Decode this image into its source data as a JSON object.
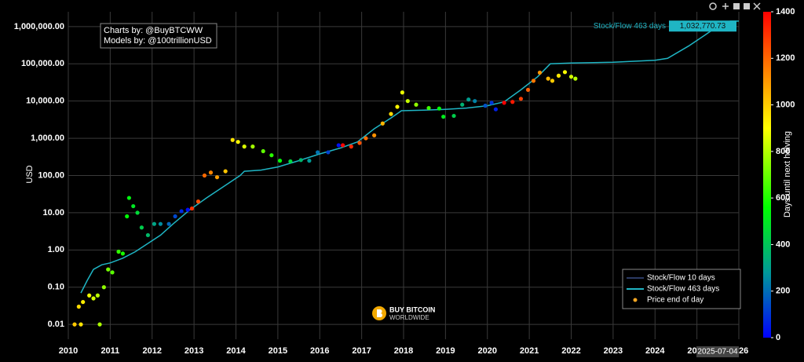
{
  "chart_data": {
    "type": "line",
    "ylabel": "USD",
    "log_y": true,
    "grid": true,
    "legend": "bottom-right",
    "xlim": [
      2010,
      2026
    ],
    "xticks": [
      2010,
      2011,
      2012,
      2013,
      2014,
      2015,
      2016,
      2017,
      2018,
      2019,
      2020,
      2021,
      2022,
      2023,
      2024,
      2025,
      2026
    ],
    "ylim": [
      0.004,
      2500000
    ],
    "yticks": [
      {
        "value": 0.01,
        "label": "0.01"
      },
      {
        "value": 0.1,
        "label": "0.10"
      },
      {
        "value": 1,
        "label": "1.00"
      },
      {
        "value": 10,
        "label": "10.00"
      },
      {
        "value": 100,
        "label": "100.00"
      },
      {
        "value": 1000,
        "label": "1,000.00"
      },
      {
        "value": 10000,
        "label": "10,000.00"
      },
      {
        "value": 100000,
        "label": "100,000.00"
      },
      {
        "value": 1000000,
        "label": "1,000,000.00"
      }
    ],
    "credits": [
      "Charts by: @BuyBTCWW",
      "Models by: @100trillionUSD"
    ],
    "logo": [
      "BUY BITCOIN",
      "WORLDWIDE"
    ],
    "hover": {
      "x": "2025-07-04",
      "value": 1032770.73,
      "value_label": "1,032,770.73"
    },
    "colorbar": {
      "title": "Days until next halving",
      "lim": [
        0,
        1400
      ],
      "ticks": [
        0,
        200,
        400,
        600,
        800,
        1000,
        1200,
        1400
      ],
      "scale": [
        [
          0,
          "#0000ff"
        ],
        [
          280,
          "#009999"
        ],
        [
          560,
          "#00ff00"
        ],
        [
          900,
          "#ffff00"
        ],
        [
          1150,
          "#ff8000"
        ],
        [
          1400,
          "#ff0000"
        ]
      ]
    },
    "series": [
      {
        "name": "Stock/Flow 10 days",
        "type": "line",
        "color": "#2b3a63",
        "x": [],
        "values": []
      },
      {
        "name": "Stock/Flow 463 days",
        "type": "line",
        "color": "#1fb5c4",
        "x": [
          2010.3,
          2010.45,
          2010.6,
          2010.8,
          2011.0,
          2011.3,
          2011.6,
          2011.9,
          2012.2,
          2012.5,
          2012.9,
          2013.3,
          2013.7,
          2014.1,
          2014.2,
          2014.6,
          2015.0,
          2015.5,
          2016.0,
          2016.5,
          2016.9,
          2017.3,
          2017.7,
          2017.95,
          2018.5,
          2019.0,
          2019.5,
          2020.0,
          2020.4,
          2020.8,
          2021.2,
          2021.5,
          2022.0,
          2023.0,
          2024.0,
          2024.3,
          2024.8,
          2025.2,
          2025.5,
          2025.8,
          2026.0
        ],
        "values": [
          0.07,
          0.15,
          0.3,
          0.4,
          0.45,
          0.6,
          0.9,
          1.5,
          2.5,
          5,
          12,
          25,
          50,
          100,
          130,
          140,
          170,
          250,
          380,
          550,
          800,
          1800,
          3500,
          5500,
          5700,
          6000,
          6500,
          7500,
          9500,
          20000,
          45000,
          100000,
          105000,
          110000,
          125000,
          140000,
          300000,
          600000,
          1032770.73,
          1400000,
          1400000
        ]
      },
      {
        "name": "Price end of day",
        "type": "scatter",
        "color": "#f5a623",
        "x": [
          2010.15,
          2010.25,
          2010.3,
          2010.35,
          2010.5,
          2010.6,
          2010.7,
          2010.75,
          2010.85,
          2010.95,
          2011.05,
          2011.2,
          2011.3,
          2011.4,
          2011.45,
          2011.55,
          2011.65,
          2011.75,
          2011.9,
          2012.05,
          2012.2,
          2012.4,
          2012.55,
          2012.7,
          2012.85,
          2012.95,
          2013.1,
          2013.25,
          2013.4,
          2013.55,
          2013.75,
          2013.92,
          2014.05,
          2014.2,
          2014.4,
          2014.65,
          2014.85,
          2015.05,
          2015.3,
          2015.55,
          2015.75,
          2015.95,
          2016.2,
          2016.45,
          2016.55,
          2016.75,
          2016.95,
          2017.1,
          2017.3,
          2017.5,
          2017.7,
          2017.85,
          2017.97,
          2018.1,
          2018.3,
          2018.6,
          2018.85,
          2018.95,
          2019.2,
          2019.4,
          2019.55,
          2019.7,
          2019.95,
          2020.1,
          2020.2,
          2020.4,
          2020.6,
          2020.8,
          2020.97,
          2021.1,
          2021.25,
          2021.45,
          2021.55,
          2021.7,
          2021.85,
          2022.0,
          2022.1
        ],
        "values": [
          0.01,
          0.03,
          0.01,
          0.04,
          0.06,
          0.05,
          0.06,
          0.01,
          0.1,
          0.3,
          0.25,
          0.9,
          0.8,
          8,
          25,
          15,
          10,
          4,
          2.5,
          5,
          5,
          5,
          8,
          11,
          12,
          13,
          20,
          100,
          120,
          90,
          130,
          900,
          800,
          600,
          600,
          450,
          350,
          250,
          240,
          260,
          250,
          420,
          420,
          650,
          650,
          600,
          750,
          1000,
          1200,
          2500,
          4500,
          7000,
          17000,
          10000,
          8000,
          6500,
          6300,
          3800,
          4000,
          8000,
          11000,
          10000,
          7500,
          9000,
          6000,
          9000,
          9500,
          11500,
          20000,
          35000,
          58000,
          40000,
          35000,
          48000,
          60000,
          45000,
          40000
        ],
        "days": [
          1007,
          971,
          953,
          934,
          880,
          843,
          807,
          788,
          752,
          715,
          679,
          624,
          588,
          551,
          533,
          496,
          460,
          423,
          369,
          314,
          259,
          186,
          131,
          77,
          22,
          1307,
          1252,
          1197,
          1142,
          1088,
          1015,
          953,
          905,
          850,
          777,
          686,
          613,
          540,
          449,
          358,
          285,
          212,
          120,
          29,
          1391,
          1318,
          1241,
          1190,
          1117,
          1044,
          971,
          916,
          872,
          825,
          752,
          639,
          548,
          511,
          423,
          350,
          296,
          241,
          150,
          95,
          58,
          1424,
          1351,
          1278,
          1215,
          1168,
          1113,
          1040,
          1004,
          949,
          894,
          840,
          803
        ]
      }
    ]
  }
}
